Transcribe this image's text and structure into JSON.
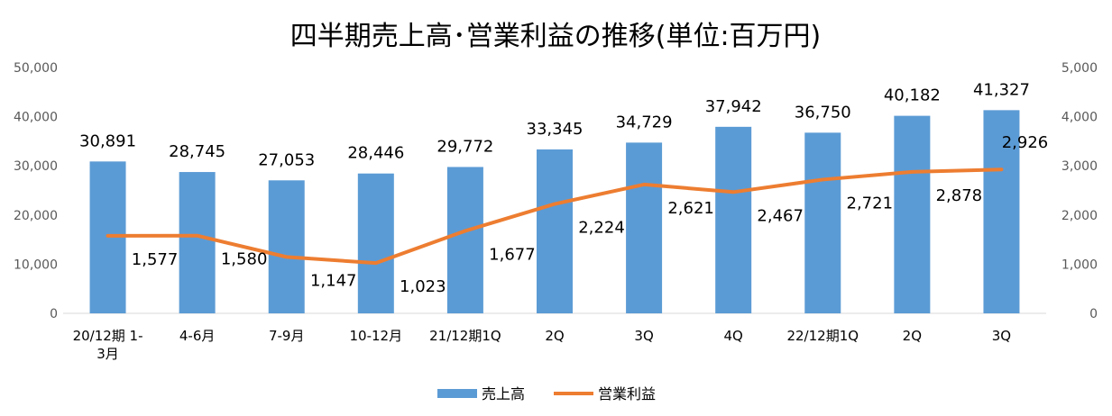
{
  "chart_data": {
    "type": "bar",
    "title": "四半期売上高･営業利益の推移(単位:百万円)",
    "categories": [
      [
        "20/12期 1-",
        "3月"
      ],
      [
        "4-6月"
      ],
      [
        "7-9月"
      ],
      [
        "10-12月"
      ],
      [
        "21/12期1Q"
      ],
      [
        "2Q"
      ],
      [
        "3Q"
      ],
      [
        "4Q"
      ],
      [
        "22/12期1Q"
      ],
      [
        "2Q"
      ],
      [
        "3Q"
      ]
    ],
    "series": [
      {
        "name": "売上高",
        "type": "bar",
        "axis": "left",
        "color": "#5b9bd5",
        "values": [
          30891,
          28745,
          27053,
          28446,
          29772,
          33345,
          34729,
          37942,
          36750,
          40182,
          41327
        ],
        "labels": [
          "30,891",
          "28,745",
          "27,053",
          "28,446",
          "29,772",
          "33,345",
          "34,729",
          "37,942",
          "36,750",
          "40,182",
          "41,327"
        ]
      },
      {
        "name": "営業利益",
        "type": "line",
        "axis": "right",
        "color": "#ed7d31",
        "values": [
          1577,
          1580,
          1147,
          1023,
          1677,
          2224,
          2621,
          2467,
          2721,
          2878,
          2926
        ],
        "labels": [
          "1,577",
          "1,580",
          "1,147",
          "1,023",
          "1,677",
          "2,224",
          "2,621",
          "2,467",
          "2,721",
          "2,878",
          "2,926"
        ]
      }
    ],
    "y_left": {
      "min": 0,
      "max": 50000,
      "ticks": [
        0,
        10000,
        20000,
        30000,
        40000,
        50000
      ],
      "tick_labels": [
        "0",
        "10,000",
        "20,000",
        "30,000",
        "40,000",
        "50,000"
      ]
    },
    "y_right": {
      "min": 0,
      "max": 5000,
      "ticks": [
        0,
        1000,
        2000,
        3000,
        4000,
        5000
      ],
      "tick_labels": [
        "0",
        "1,000",
        "2,000",
        "3,000",
        "4,000",
        "5,000"
      ]
    },
    "grid": false,
    "legend": "bottom-center"
  }
}
